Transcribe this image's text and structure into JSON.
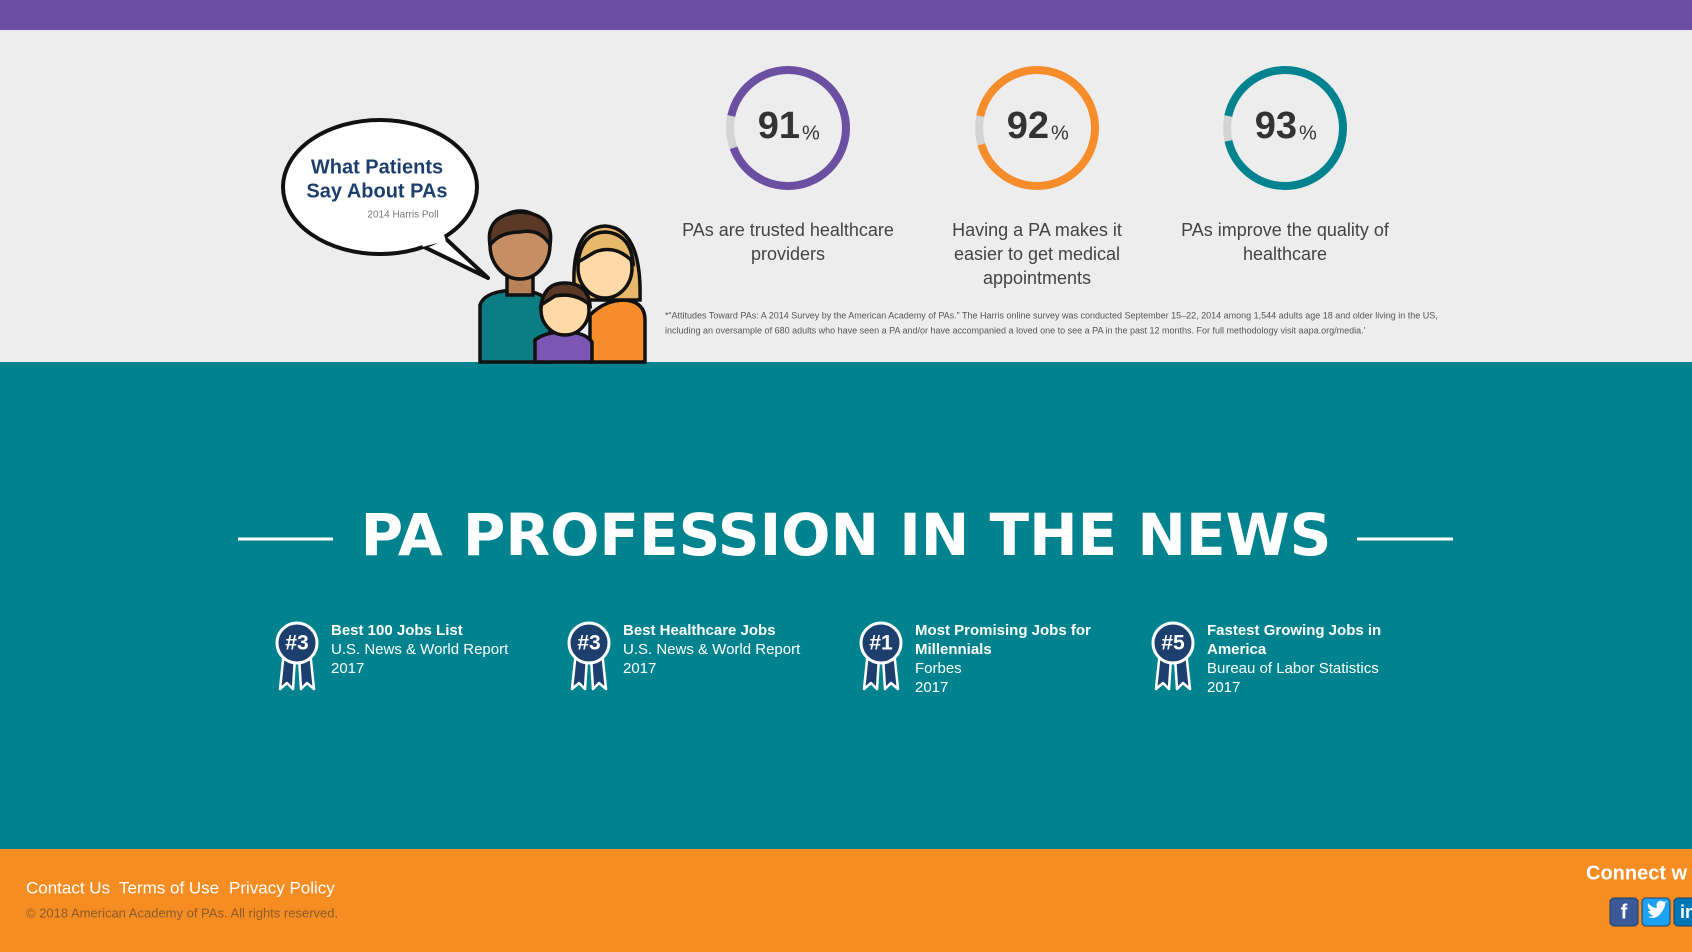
{
  "survey": {
    "bubble_title": [
      "What Patients",
      "Say About PAs"
    ],
    "source": "2014 Harris Poll",
    "stats": [
      {
        "value": 91,
        "unit": "%",
        "color": "#6b4fa3",
        "text": [
          "PAs are trusted healthcare",
          "providers"
        ]
      },
      {
        "value": 92,
        "unit": "%",
        "color": "#f68d2a",
        "text": [
          "Having a PA makes it",
          "easier to get medical",
          "appointments"
        ]
      },
      {
        "value": 93,
        "unit": "%",
        "color": "#00838f",
        "text": [
          "PAs improve the quality of",
          "healthcare"
        ]
      }
    ],
    "footnote": [
      "*“Attitudes Toward PAs: A 2014 Survey by the American Academy of PAs.” The Harris online survey was conducted September 15–22, 2014 among 1,544 adults age 18 and older living in the US,",
      "including an oversample of 680 adults who have seen a PA and/or have accompanied a loved one to see a PA in the past 12 months. For full methodology visit aapa.org/media.'"
    ]
  },
  "news": {
    "title": "PA PROFESSION IN THE NEWS",
    "awards": [
      {
        "rank": "#3",
        "title": [
          "Best 100 Jobs List"
        ],
        "lines": [
          "U.S. News & World Report",
          "2017"
        ]
      },
      {
        "rank": "#3",
        "title": [
          "Best Healthcare Jobs"
        ],
        "lines": [
          "U.S. News & World Report",
          "2017"
        ]
      },
      {
        "rank": "#1",
        "title": [
          "Most Promising Jobs for",
          "Millennials"
        ],
        "lines": [
          "Forbes",
          "2017"
        ]
      },
      {
        "rank": "#5",
        "title": [
          "Fastest Growing Jobs in",
          "America"
        ],
        "lines": [
          "Bureau of Labor Statistics",
          "2017"
        ]
      }
    ]
  },
  "footer": {
    "links": [
      "Contact Us",
      "Terms of Use",
      "Privacy Policy"
    ],
    "copyright": "© 2018 American Academy of PAs. All rights reserved.",
    "connect": "Connect w",
    "social": [
      "f",
      "in"
    ]
  }
}
